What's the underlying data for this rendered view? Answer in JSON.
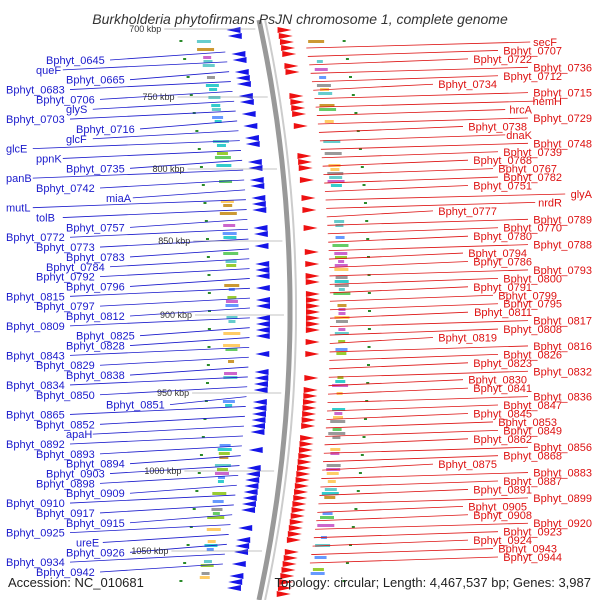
{
  "title": "Burkholderia phytofirmans PsJN chromosome 1, complete genome",
  "footer": {
    "accession": "Accession: NC_010681",
    "summary": "Topology: circular; Length: 4,467,537 bp; Genes: 3,987"
  },
  "colors": {
    "left_label": "#1a1acc",
    "right_label": "#dd1111",
    "forward_feature": "#ee1111",
    "reverse_feature": "#1515e8",
    "backbone": "#999999",
    "tick_dots": "#2a8a2a"
  },
  "kbp_ticks": [
    "700 kbp",
    "750 kbp",
    "800 kbp",
    "850 kbp",
    "900 kbp",
    "950 kbp",
    "1000 kbp",
    "1050 kbp"
  ],
  "left_labels": [
    "Bphyt_0645",
    "queF",
    "Bphyt_0665",
    "Bphyt_0683",
    "Bphyt_0706",
    "glyS",
    "Bphyt_0703",
    "Bphyt_0716",
    "glcF",
    "glcE",
    "ppnK",
    "Bphyt_0735",
    "panB",
    "Bphyt_0742",
    "miaA",
    "mutL",
    "tolB",
    "Bphyt_0757",
    "Bphyt_0772",
    "Bphyt_0773",
    "Bphyt_0783",
    "Bphyt_0784",
    "Bphyt_0792",
    "Bphyt_0796",
    "Bphyt_0815",
    "Bphyt_0797",
    "Bphyt_0812",
    "Bphyt_0809",
    "Bphyt_0825",
    "Bphyt_0828",
    "Bphyt_0843",
    "Bphyt_0829",
    "Bphyt_0838",
    "Bphyt_0834",
    "Bphyt_0850",
    "Bphyt_0851",
    "Bphyt_0865",
    "Bphyt_0852",
    "apaH",
    "Bphyt_0892",
    "Bphyt_0893",
    "Bphyt_0894",
    "Bphyt_0903",
    "Bphyt_0898",
    "Bphyt_0909",
    "Bphyt_0910",
    "Bphyt_0917",
    "Bphyt_0915",
    "Bphyt_0925",
    "ureE",
    "Bphyt_0926",
    "Bphyt_0934",
    "Bphyt_0942"
  ],
  "right_labels": [
    "secF",
    "Bphyt_0707",
    "Bphyt_0722",
    "Bphyt_0736",
    "Bphyt_0712",
    "Bphyt_0734",
    "Bphyt_0715",
    "hemH",
    "hrcA",
    "Bphyt_0729",
    "Bphyt_0738",
    "dnaK",
    "Bphyt_0748",
    "Bphyt_0739",
    "Bphyt_0768",
    "Bphyt_0767",
    "Bphyt_0782",
    "Bphyt_0751",
    "glyA",
    "nrdR",
    "Bphyt_0777",
    "Bphyt_0789",
    "Bphyt_0770",
    "Bphyt_0780",
    "Bphyt_0788",
    "Bphyt_0794",
    "Bphyt_0786",
    "Bphyt_0793",
    "Bphyt_0800",
    "Bphyt_0791",
    "Bphyt_0799",
    "Bphyt_0795",
    "Bphyt_0811",
    "Bphyt_0817",
    "Bphyt_0808",
    "Bphyt_0819",
    "Bphyt_0816",
    "Bphyt_0826",
    "Bphyt_0823",
    "Bphyt_0832",
    "Bphyt_0830",
    "Bphyt_0841",
    "Bphyt_0836",
    "Bphyt_0847",
    "Bphyt_0845",
    "Bphyt_0853",
    "Bphyt_0849",
    "Bphyt_0862",
    "Bphyt_0856",
    "Bphyt_0868",
    "Bphyt_0875",
    "Bphyt_0883",
    "Bphyt_0887",
    "Bphyt_0891",
    "Bphyt_0899",
    "Bphyt_0905",
    "Bphyt_0908",
    "Bphyt_0920",
    "Bphyt_0923",
    "Bphyt_0924",
    "Bphyt_0943",
    "Bphyt_0944"
  ]
}
